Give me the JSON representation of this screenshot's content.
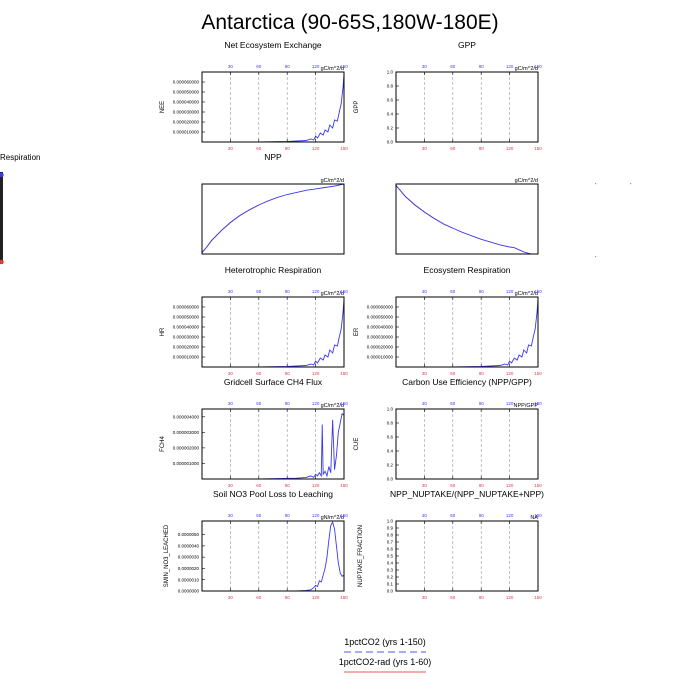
{
  "title": "Antarctica (90-65S,180W-180E)",
  "stray_label": "Respiration",
  "colors": {
    "series_a": "#3a3af0",
    "series_b": "#e03a3a",
    "grid": "#9a9a9a"
  },
  "legend": {
    "entries": [
      {
        "label": "1pctCO2 (yrs 1-150)",
        "color": "#8f8ff0",
        "style": "dashed"
      },
      {
        "label": "1pctCO2-rad (yrs 1-60)",
        "color": "#f08f8f",
        "style": "solid"
      }
    ]
  },
  "chart_data": [
    {
      "type": "line",
      "title": "Net Ecosystem Exchange",
      "units": "gC/m^2/d",
      "ylabel": "NEE",
      "xlim": [
        0,
        150
      ],
      "ylim": [
        0,
        7e-05
      ],
      "xticks": [
        "30",
        "60",
        "90",
        "120",
        "150"
      ],
      "yticks": [
        {
          "v": 1e-05,
          "label": "0.000010000"
        },
        {
          "v": 2e-05,
          "label": "0.000020000"
        },
        {
          "v": 3e-05,
          "label": "0.000030000"
        },
        {
          "v": 4e-05,
          "label": "0.000040000"
        },
        {
          "v": 5e-05,
          "label": "0.000050000"
        },
        {
          "v": 6e-05,
          "label": "0.000060000"
        }
      ],
      "series": [
        {
          "color": "#3a3af0",
          "x": [
            0,
            60,
            90,
            100,
            110,
            115,
            118,
            120,
            122,
            125,
            128,
            130,
            133,
            135,
            138,
            140,
            143,
            145,
            147,
            149,
            150
          ],
          "y": [
            0,
            0,
            5e-07,
            1e-06,
            1.5e-06,
            3e-06,
            2e-06,
            6e-06,
            4e-06,
            9e-06,
            7e-06,
            1.2e-05,
            1e-05,
            1.7e-05,
            1.4e-05,
            2.2e-05,
            2.1e-05,
            3e-05,
            3.8e-05,
            5.5e-05,
            6.8e-05
          ]
        }
      ]
    },
    {
      "type": "line",
      "title": "GPP",
      "units": "gC/m^2/d",
      "ylabel": "GPP",
      "xlim": [
        0,
        150
      ],
      "ylim": [
        0,
        1.0
      ],
      "xticks": [
        "30",
        "60",
        "90",
        "120",
        "150"
      ],
      "yticks": [
        {
          "v": 0,
          "label": "0.0"
        },
        {
          "v": 0.2,
          "label": "0.2"
        },
        {
          "v": 0.4,
          "label": "0.4"
        },
        {
          "v": 0.6,
          "label": "0.6"
        },
        {
          "v": 0.8,
          "label": "0.8"
        },
        {
          "v": 1.0,
          "label": "1.0"
        }
      ],
      "series": []
    },
    {
      "type": "line",
      "title": "NPP",
      "units": "gC/m^2/d",
      "ylabel": "",
      "xlim": [
        0,
        150
      ],
      "ylim": [
        0,
        1
      ],
      "xticks": [],
      "yticks": [],
      "frame_only": true,
      "series": [
        {
          "color": "#e03a3a",
          "x": [
            0,
            5,
            10,
            20,
            30,
            40,
            50,
            60
          ],
          "y": [
            0.02,
            0.1,
            0.19,
            0.33,
            0.45,
            0.55,
            0.63,
            0.7
          ]
        },
        {
          "color": "#3a3af0",
          "x": [
            0,
            5,
            10,
            20,
            30,
            40,
            50,
            60,
            70,
            80,
            90,
            100,
            110,
            120,
            130,
            140,
            150
          ],
          "y": [
            0.02,
            0.1,
            0.19,
            0.33,
            0.45,
            0.55,
            0.63,
            0.7,
            0.76,
            0.81,
            0.85,
            0.88,
            0.91,
            0.93,
            0.95,
            0.97,
            1.0
          ]
        }
      ]
    },
    {
      "type": "line",
      "title": "",
      "units": "gC/m^2/d",
      "ylabel": "",
      "xlim": [
        0,
        150
      ],
      "ylim": [
        0,
        1
      ],
      "xticks": [],
      "yticks": [],
      "frame_only": true,
      "series": [
        {
          "color": "#e03a3a",
          "x": [
            0,
            5,
            10,
            20,
            30,
            40,
            50,
            60
          ],
          "y": [
            0.98,
            0.9,
            0.82,
            0.7,
            0.6,
            0.51,
            0.43,
            0.37
          ]
        },
        {
          "color": "#3a3af0",
          "x": [
            0,
            5,
            10,
            20,
            30,
            40,
            50,
            60,
            70,
            80,
            90,
            100,
            110,
            120,
            125,
            130,
            135,
            140,
            150
          ],
          "y": [
            0.98,
            0.9,
            0.82,
            0.7,
            0.6,
            0.51,
            0.43,
            0.37,
            0.31,
            0.26,
            0.21,
            0.17,
            0.13,
            0.1,
            0.09,
            0.06,
            0.03,
            0.01,
            -0.02
          ]
        }
      ]
    },
    {
      "type": "line",
      "title": "Heterotrophic Respiration",
      "units": "gC/m^2/d",
      "ylabel": "HR",
      "xlim": [
        0,
        150
      ],
      "ylim": [
        0,
        7e-05
      ],
      "xticks": [
        "30",
        "60",
        "90",
        "120",
        "150"
      ],
      "yticks": [
        {
          "v": 1e-05,
          "label": "0.000010000"
        },
        {
          "v": 2e-05,
          "label": "0.000020000"
        },
        {
          "v": 3e-05,
          "label": "0.000030000"
        },
        {
          "v": 4e-05,
          "label": "0.000040000"
        },
        {
          "v": 5e-05,
          "label": "0.000050000"
        },
        {
          "v": 6e-05,
          "label": "0.000060000"
        }
      ],
      "series": [
        {
          "color": "#3a3af0",
          "x": [
            0,
            60,
            90,
            100,
            110,
            115,
            118,
            120,
            122,
            125,
            128,
            130,
            133,
            135,
            138,
            140,
            143,
            145,
            147,
            149,
            150
          ],
          "y": [
            0,
            0,
            5e-07,
            1e-06,
            1.5e-06,
            3e-06,
            2e-06,
            6e-06,
            4e-06,
            9e-06,
            7e-06,
            1.2e-05,
            1e-05,
            1.7e-05,
            1.4e-05,
            2.2e-05,
            2.1e-05,
            3e-05,
            3.8e-05,
            5.5e-05,
            6.8e-05
          ]
        }
      ]
    },
    {
      "type": "line",
      "title": "Ecosystem Respiration",
      "units": "gC/m^2/d",
      "ylabel": "ER",
      "xlim": [
        0,
        150
      ],
      "ylim": [
        0,
        7e-05
      ],
      "xticks": [
        "30",
        "60",
        "90",
        "120",
        "150"
      ],
      "yticks": [
        {
          "v": 1e-05,
          "label": "0.000010000"
        },
        {
          "v": 2e-05,
          "label": "0.000020000"
        },
        {
          "v": 3e-05,
          "label": "0.000030000"
        },
        {
          "v": 4e-05,
          "label": "0.000040000"
        },
        {
          "v": 5e-05,
          "label": "0.000050000"
        },
        {
          "v": 6e-05,
          "label": "0.000060000"
        }
      ],
      "series": [
        {
          "color": "#3a3af0",
          "x": [
            0,
            60,
            90,
            100,
            110,
            115,
            118,
            120,
            122,
            125,
            128,
            130,
            133,
            135,
            138,
            140,
            143,
            145,
            147,
            149,
            150
          ],
          "y": [
            0,
            0,
            5e-07,
            1e-06,
            1.5e-06,
            3e-06,
            2e-06,
            6e-06,
            4e-06,
            9e-06,
            7e-06,
            1.2e-05,
            1e-05,
            1.7e-05,
            1.4e-05,
            2.2e-05,
            2.1e-05,
            3e-05,
            3.8e-05,
            5.5e-05,
            6.8e-05
          ]
        }
      ]
    },
    {
      "type": "line",
      "title": "Gridcell Surface CH4 Flux",
      "units": "gC/m^2/d",
      "ylabel": "FCH4",
      "xlim": [
        0,
        150
      ],
      "ylim": [
        0,
        4.5e-06
      ],
      "xticks": [
        "30",
        "60",
        "90",
        "120",
        "150"
      ],
      "yticks": [
        {
          "v": 1e-06,
          "label": "0.000001000"
        },
        {
          "v": 2e-06,
          "label": "0.000002000"
        },
        {
          "v": 3e-06,
          "label": "0.000003000"
        },
        {
          "v": 4e-06,
          "label": "0.000004000"
        }
      ],
      "series": [
        {
          "color": "#3a3af0",
          "x": [
            0,
            60,
            100,
            110,
            115,
            118,
            120,
            122,
            124,
            126,
            127,
            128,
            130,
            132,
            134,
            136,
            138,
            140,
            142,
            144,
            146,
            148,
            150
          ],
          "y": [
            0,
            0,
            5e-08,
            1e-07,
            2e-07,
            1e-07,
            3e-07,
            2e-07,
            4e-07,
            2e-07,
            3.5e-06,
            3e-07,
            5e-07,
            2e-07,
            8e-07,
            4e-07,
            3.8e-06,
            6e-07,
            1.5e-06,
            3e-06,
            3.6e-06,
            4.2e-06,
            4.1e-06
          ]
        }
      ]
    },
    {
      "type": "line",
      "title": "Carbon Use Efficiency (NPP/GPP)",
      "units": "NPP/GPP",
      "ylabel": "CUE",
      "xlim": [
        0,
        150
      ],
      "ylim": [
        0,
        1.0
      ],
      "xticks": [
        "30",
        "60",
        "90",
        "120",
        "150"
      ],
      "yticks": [
        {
          "v": 0,
          "label": "0.0"
        },
        {
          "v": 0.2,
          "label": "0.2"
        },
        {
          "v": 0.4,
          "label": "0.4"
        },
        {
          "v": 0.6,
          "label": "0.6"
        },
        {
          "v": 0.8,
          "label": "0.8"
        },
        {
          "v": 1.0,
          "label": "1.0"
        }
      ],
      "series": []
    },
    {
      "type": "line",
      "title": "Soil NO3 Pool Loss to Leaching",
      "units": "gN/m^2/d",
      "ylabel": "SMIN_NO3_LEACHED",
      "xlim": [
        0,
        150
      ],
      "ylim": [
        0,
        6.2e-06
      ],
      "xticks": [
        "30",
        "60",
        "90",
        "120",
        "150"
      ],
      "yticks": [
        {
          "v": 0,
          "label": "0.0000000"
        },
        {
          "v": 1e-06,
          "label": "0.0000010"
        },
        {
          "v": 2e-06,
          "label": "0.0000020"
        },
        {
          "v": 3e-06,
          "label": "0.0000030"
        },
        {
          "v": 4e-06,
          "label": "0.0000040"
        },
        {
          "v": 5e-06,
          "label": "0.0000050"
        }
      ],
      "series": [
        {
          "color": "#3a3af0",
          "x": [
            0,
            100,
            110,
            115,
            118,
            120,
            122,
            124,
            126,
            128,
            130,
            132,
            134,
            136,
            138,
            140,
            142,
            144,
            146,
            148,
            150
          ],
          "y": [
            0,
            0,
            5e-08,
            1e-07,
            3e-07,
            5e-07,
            4e-07,
            9e-07,
            8e-07,
            1.4e-06,
            2e-06,
            3e-06,
            4.5e-06,
            5.8e-06,
            6.1e-06,
            5.5e-06,
            4e-06,
            2.5e-06,
            1.6e-06,
            1.3e-06,
            1.4e-06
          ]
        }
      ]
    },
    {
      "type": "line",
      "title": "NPP_NUPTAKE/(NPP_NUPTAKE+NPP)",
      "units": "NA",
      "ylabel": "NUPTAKE_FRACTION",
      "xlim": [
        0,
        150
      ],
      "ylim": [
        0,
        1.0
      ],
      "xticks": [
        "30",
        "60",
        "90",
        "120",
        "150"
      ],
      "yticks": [
        {
          "v": 0,
          "label": "0.0"
        },
        {
          "v": 0.1,
          "label": "0.1"
        },
        {
          "v": 0.2,
          "label": "0.2"
        },
        {
          "v": 0.3,
          "label": "0.3"
        },
        {
          "v": 0.4,
          "label": "0.4"
        },
        {
          "v": 0.5,
          "label": "0.5"
        },
        {
          "v": 0.6,
          "label": "0.6"
        },
        {
          "v": 0.7,
          "label": "0.7"
        },
        {
          "v": 0.8,
          "label": "0.8"
        },
        {
          "v": 0.9,
          "label": "0.9"
        },
        {
          "v": 1.0,
          "label": "1.0"
        }
      ],
      "series": []
    }
  ]
}
